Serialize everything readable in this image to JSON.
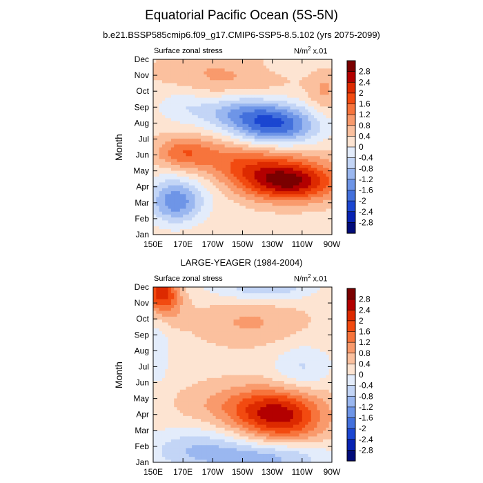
{
  "title": "Equatorial Pacific Ocean (5S-5N)",
  "unit_label": "N/m",
  "unit_exp": "2",
  "unit_scale": " x.01",
  "colorbar": {
    "levels": [
      "2.8",
      "2.4",
      "2",
      "1.6",
      "1.2",
      "0.8",
      "0.4",
      "0",
      "-0.4",
      "-0.8",
      "-1.2",
      "-1.6",
      "-2",
      "-2.4",
      "-2.8"
    ],
    "colors": [
      "#7a0000",
      "#b30000",
      "#dd2a00",
      "#f24a10",
      "#f7743c",
      "#f99a6c",
      "#fbc09e",
      "#fde4d2",
      "#e3ecfb",
      "#c3d5f6",
      "#9ab7f0",
      "#6e95e7",
      "#4370dc",
      "#1b46d1",
      "#0722b2",
      "#010c7a"
    ]
  },
  "chart_data": [
    {
      "type": "heatmap",
      "title": "b.e21.BSSP585cmip6.f09_g17.CMIP6-SSP5-8.5.102 (yrs 2075-2099)",
      "left_label": "Surface zonal stress",
      "ylabel": "Month",
      "xticks": [
        "150E",
        "170E",
        "170W",
        "150W",
        "130W",
        "110W",
        "90W"
      ],
      "yticks": [
        "Jan",
        "Feb",
        "Mar",
        "Apr",
        "May",
        "Jun",
        "Jul",
        "Aug",
        "Sep",
        "Oct",
        "Nov",
        "Dec"
      ],
      "xlim_deg_east": [
        150,
        270
      ],
      "centers": [
        {
          "lon": 165,
          "month": 3,
          "value": -1.5,
          "sx": 12,
          "sy": 0.9
        },
        {
          "lon": 172,
          "month": 4.3,
          "value": -0.5,
          "sx": 22,
          "sy": 1.2
        },
        {
          "lon": 242,
          "month": 4.2,
          "value": 2.0,
          "sx": 22,
          "sy": 0.8
        },
        {
          "lon": 228,
          "month": 5.0,
          "value": 1.2,
          "sx": 28,
          "sy": 0.9
        },
        {
          "lon": 195,
          "month": 5.9,
          "value": 0.8,
          "sx": 30,
          "sy": 0.9
        },
        {
          "lon": 170,
          "month": 6.2,
          "value": 0.9,
          "sx": 12,
          "sy": 0.7
        },
        {
          "lon": 232,
          "month": 7.9,
          "value": -2.2,
          "sx": 20,
          "sy": 0.9
        },
        {
          "lon": 205,
          "month": 8.8,
          "value": -1.1,
          "sx": 20,
          "sy": 0.8
        },
        {
          "lon": 168,
          "month": 9.2,
          "value": -0.5,
          "sx": 12,
          "sy": 0.8
        },
        {
          "lon": 200,
          "month": 11.1,
          "value": 0.7,
          "sx": 30,
          "sy": 1.2
        },
        {
          "lon": 265,
          "month": 10.0,
          "value": 0.6,
          "sx": 8,
          "sy": 1.0
        },
        {
          "lon": 230,
          "month": 11.6,
          "value": -0.3,
          "sx": 25,
          "sy": 0.6
        }
      ]
    },
    {
      "type": "heatmap",
      "title": "LARGE-YEAGER (1984-2004)",
      "left_label": "Surface zonal stress",
      "ylabel": "Month",
      "xticks": [
        "150E",
        "170E",
        "170W",
        "150W",
        "130W",
        "110W",
        "90W"
      ],
      "yticks": [
        "Jan",
        "Feb",
        "Mar",
        "Apr",
        "May",
        "Jun",
        "Jul",
        "Aug",
        "Sep",
        "Oct",
        "Nov",
        "Dec"
      ],
      "xlim_deg_east": [
        150,
        270
      ],
      "centers": [
        {
          "lon": 155,
          "month": 11.8,
          "value": 1.8,
          "sx": 8,
          "sy": 0.8
        },
        {
          "lon": 160,
          "month": 10.8,
          "value": 0.6,
          "sx": 8,
          "sy": 0.8
        },
        {
          "lon": 235,
          "month": 4.0,
          "value": 1.7,
          "sx": 20,
          "sy": 1.0
        },
        {
          "lon": 215,
          "month": 4.6,
          "value": 0.9,
          "sx": 28,
          "sy": 1.0
        },
        {
          "lon": 215,
          "month": 9.8,
          "value": 0.6,
          "sx": 25,
          "sy": 1.0
        },
        {
          "lon": 180,
          "month": 1.8,
          "value": -1.0,
          "sx": 25,
          "sy": 1.0
        },
        {
          "lon": 230,
          "month": 1.3,
          "value": -1.1,
          "sx": 28,
          "sy": 0.7
        },
        {
          "lon": 250,
          "month": 7.0,
          "value": -0.7,
          "sx": 14,
          "sy": 1.0
        },
        {
          "lon": 230,
          "month": 12.0,
          "value": -0.9,
          "sx": 20,
          "sy": 0.6
        },
        {
          "lon": 153,
          "month": 8.0,
          "value": -0.6,
          "sx": 6,
          "sy": 1.5
        },
        {
          "lon": 200,
          "month": 12.0,
          "value": -0.3,
          "sx": 20,
          "sy": 0.6
        },
        {
          "lon": 240,
          "month": 3.0,
          "value": 0.4,
          "sx": 20,
          "sy": 0.8
        }
      ]
    }
  ]
}
